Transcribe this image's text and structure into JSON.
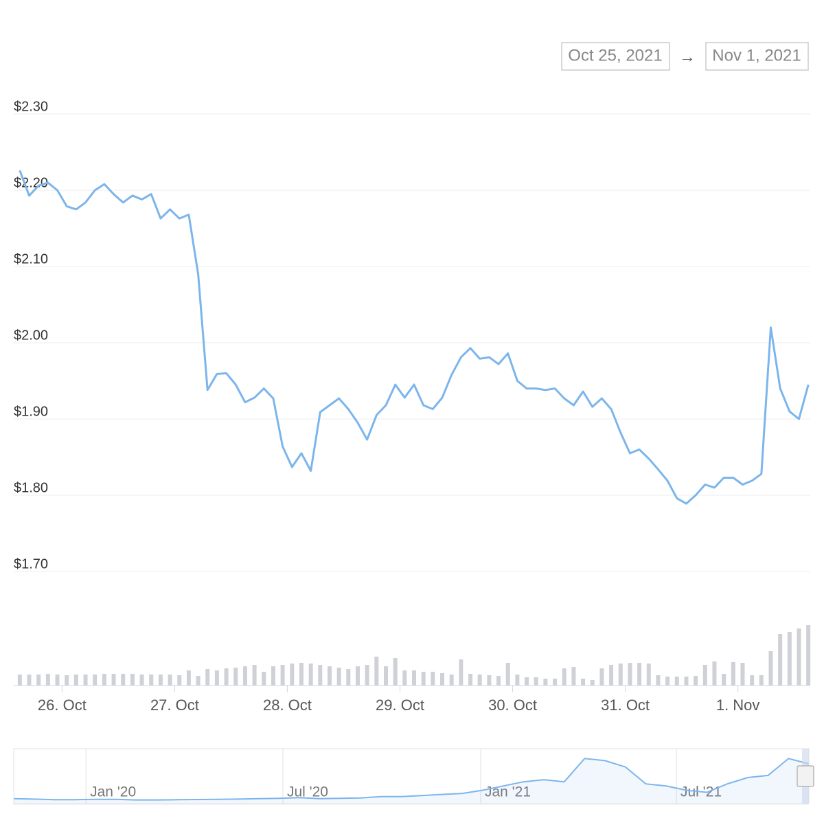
{
  "range_selector": {
    "from": "Oct 25, 2021",
    "separator": "→",
    "to": "Nov 1, 2021"
  },
  "chart_data": [
    {
      "type": "line",
      "xlim": [
        0,
        85
      ],
      "xticks": [
        {
          "value": 5,
          "label": "26. Oct"
        },
        {
          "value": 17,
          "label": "27. Oct"
        },
        {
          "value": 29,
          "label": "28. Oct"
        },
        {
          "value": 41,
          "label": "29. Oct"
        },
        {
          "value": 53,
          "label": "30. Oct"
        },
        {
          "value": 65,
          "label": "31. Oct"
        },
        {
          "value": 77,
          "label": "1. Nov"
        }
      ],
      "ylim": [
        1.7,
        2.3
      ],
      "yticks": [
        {
          "value": 2.3,
          "label": "$2.30"
        },
        {
          "value": 2.2,
          "label": "$2.20"
        },
        {
          "value": 2.1,
          "label": "$2.10"
        },
        {
          "value": 2.0,
          "label": "$2.00"
        },
        {
          "value": 1.9,
          "label": "$1.90"
        },
        {
          "value": 1.8,
          "label": "$1.80"
        },
        {
          "value": 1.7,
          "label": "$1.70"
        }
      ],
      "y2lim": [
        0,
        100
      ],
      "grid": true,
      "series": [
        {
          "color": "#7cb5ec",
          "values": [
            2.226,
            2.193,
            2.206,
            2.21,
            2.2,
            2.179,
            2.175,
            2.184,
            2.2,
            2.208,
            2.195,
            2.184,
            2.193,
            2.188,
            2.195,
            2.163,
            2.175,
            2.163,
            2.168,
            2.09,
            1.938,
            1.959,
            1.96,
            1.945,
            1.922,
            1.928,
            1.94,
            1.927,
            1.864,
            1.837,
            1.855,
            1.832,
            1.909,
            1.918,
            1.927,
            1.913,
            1.895,
            1.873,
            1.905,
            1.918,
            1.945,
            1.928,
            1.945,
            1.918,
            1.913,
            1.928,
            1.958,
            1.981,
            1.993,
            1.979,
            1.981,
            1.972,
            1.986,
            1.95,
            1.94,
            1.94,
            1.938,
            1.94,
            1.927,
            1.918,
            1.936,
            1.916,
            1.927,
            1.913,
            1.882,
            1.855,
            1.86,
            1.848,
            1.834,
            1.819,
            1.796,
            1.789,
            1.8,
            1.814,
            1.81,
            1.823,
            1.823,
            1.814,
            1.819,
            1.828,
            2.02,
            1.94,
            1.91,
            1.9,
            1.945
          ]
        },
        {
          "type": "bar",
          "axis": "y2",
          "color": "#cfd1d6",
          "values": [
            16,
            16,
            16,
            17,
            16,
            15,
            16,
            16,
            16,
            17,
            17,
            17,
            17,
            16,
            16,
            16,
            16,
            15,
            22,
            14,
            24,
            22,
            25,
            26,
            28,
            30,
            20,
            28,
            30,
            32,
            33,
            32,
            30,
            28,
            26,
            24,
            28,
            30,
            42,
            28,
            40,
            22,
            22,
            20,
            20,
            18,
            16,
            38,
            17,
            16,
            15,
            14,
            33,
            16,
            12,
            12,
            10,
            10,
            25,
            27,
            10,
            8,
            25,
            30,
            32,
            33,
            33,
            32,
            15,
            13,
            13,
            13,
            14,
            30,
            35,
            17,
            34,
            33,
            15,
            15,
            50,
            75,
            78,
            83,
            88
          ]
        }
      ]
    },
    {
      "type": "area",
      "xlim": [
        0,
        39
      ],
      "xticks": [
        {
          "value": 3.54,
          "label": "Jan '20"
        },
        {
          "value": 13.2,
          "label": "Jul '20"
        },
        {
          "value": 22.9,
          "label": "Jan '21"
        },
        {
          "value": 32.5,
          "label": "Jul '21"
        }
      ],
      "ylim": [
        0,
        2.6
      ],
      "color": "#7cb5ec",
      "values": [
        0.3,
        0.28,
        0.25,
        0.25,
        0.27,
        0.27,
        0.24,
        0.24,
        0.25,
        0.26,
        0.27,
        0.28,
        0.3,
        0.32,
        0.35,
        0.3,
        0.32,
        0.33,
        0.4,
        0.4,
        0.45,
        0.5,
        0.55,
        0.7,
        0.9,
        1.1,
        1.2,
        1.1,
        2.2,
        2.1,
        1.8,
        1.0,
        0.9,
        0.7,
        0.6,
        1.0,
        1.3,
        1.4,
        2.2,
        1.95
      ]
    }
  ]
}
